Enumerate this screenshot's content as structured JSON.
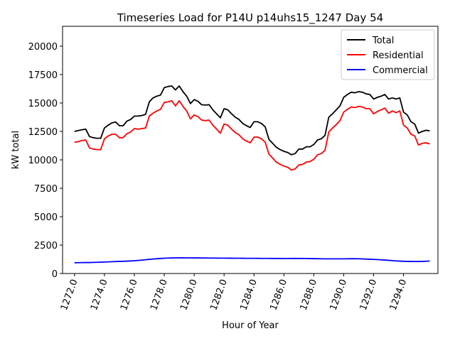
{
  "chart_data": {
    "type": "line",
    "title": "Timeseries Load for P14U p14uhs15_1247  Day 54",
    "xlabel": "Hour of Year",
    "ylabel": "kW total",
    "xlim": [
      1271.2,
      1296.3
    ],
    "ylim": [
      0,
      21750
    ],
    "x_ticks": [
      1272,
      1274,
      1276,
      1278,
      1280,
      1282,
      1284,
      1286,
      1288,
      1290,
      1292,
      1294
    ],
    "x_tick_labels": [
      "1272.0",
      "1274.0",
      "1276.0",
      "1278.0",
      "1280.0",
      "1282.0",
      "1284.0",
      "1286.0",
      "1288.0",
      "1290.0",
      "1292.0",
      "1294.0"
    ],
    "y_ticks": [
      0,
      2500,
      5000,
      7500,
      10000,
      12500,
      15000,
      17500,
      20000
    ],
    "y_tick_labels": [
      "0",
      "2500",
      "5000",
      "7500",
      "10000",
      "12500",
      "15000",
      "17500",
      "20000"
    ],
    "legend_position": "top-right",
    "x_start": 1272.0,
    "x_step": 0.25,
    "series": [
      {
        "name": "Total",
        "color": "#000000",
        "values": [
          12500,
          12580,
          12650,
          12700,
          12050,
          11950,
          11900,
          11900,
          12800,
          13050,
          13250,
          13330,
          13000,
          13000,
          13400,
          13550,
          13850,
          13850,
          13900,
          14000,
          15100,
          15450,
          15600,
          15700,
          16350,
          16450,
          16500,
          16150,
          16500,
          16000,
          15600,
          14950,
          15300,
          15150,
          14850,
          14820,
          14850,
          14400,
          14050,
          13700,
          14500,
          14400,
          14050,
          13750,
          13550,
          13200,
          13000,
          12850,
          13350,
          13350,
          13200,
          12900,
          11800,
          11450,
          11100,
          10900,
          10750,
          10650,
          10450,
          10550,
          10950,
          10950,
          11150,
          11150,
          11350,
          11750,
          11850,
          12150,
          13750,
          14050,
          14400,
          14750,
          15500,
          15750,
          15950,
          15900,
          16000,
          15950,
          15800,
          15750,
          15350,
          15500,
          15600,
          15750,
          15350,
          15450,
          15350,
          15450,
          14200,
          13950,
          13350,
          13150,
          12350,
          12500,
          12600,
          12550
        ]
      },
      {
        "name": "Residential",
        "color": "#ff0000",
        "values": [
          11550,
          11600,
          11700,
          11750,
          11050,
          10950,
          10900,
          10900,
          11850,
          12100,
          12250,
          12250,
          11950,
          11950,
          12300,
          12450,
          12750,
          12700,
          12750,
          12800,
          13850,
          14100,
          14300,
          14450,
          15050,
          15100,
          15200,
          14750,
          15200,
          14700,
          14300,
          13600,
          13950,
          13800,
          13500,
          13450,
          13500,
          13050,
          12700,
          12350,
          13150,
          13050,
          12700,
          12400,
          12200,
          11850,
          11650,
          11500,
          12000,
          12000,
          11850,
          11550,
          10500,
          10150,
          9800,
          9600,
          9450,
          9350,
          9100,
          9200,
          9550,
          9600,
          9800,
          9850,
          10050,
          10450,
          10550,
          10850,
          12450,
          12800,
          13100,
          13450,
          14200,
          14450,
          14650,
          14600,
          14700,
          14650,
          14500,
          14500,
          14050,
          14250,
          14400,
          14550,
          14100,
          14300,
          14150,
          14300,
          13050,
          12800,
          12250,
          12100,
          11300,
          11450,
          11500,
          11400
        ]
      },
      {
        "name": "Commercial",
        "color": "#0000ff",
        "values": [
          950,
          955,
          960,
          965,
          965,
          975,
          985,
          995,
          1010,
          1025,
          1040,
          1055,
          1065,
          1075,
          1090,
          1105,
          1125,
          1150,
          1180,
          1210,
          1245,
          1275,
          1300,
          1325,
          1345,
          1360,
          1370,
          1375,
          1380,
          1380,
          1375,
          1375,
          1370,
          1370,
          1365,
          1365,
          1360,
          1360,
          1355,
          1350,
          1350,
          1348,
          1346,
          1344,
          1342,
          1340,
          1338,
          1336,
          1334,
          1332,
          1330,
          1328,
          1326,
          1325,
          1324,
          1323,
          1322,
          1322,
          1323,
          1324,
          1324,
          1323,
          1320,
          1315,
          1308,
          1300,
          1295,
          1290,
          1288,
          1288,
          1288,
          1288,
          1290,
          1295,
          1300,
          1300,
          1295,
          1285,
          1270,
          1255,
          1240,
          1225,
          1205,
          1185,
          1160,
          1135,
          1110,
          1090,
          1075,
          1065,
          1060,
          1055,
          1060,
          1065,
          1080,
          1100
        ]
      }
    ]
  }
}
